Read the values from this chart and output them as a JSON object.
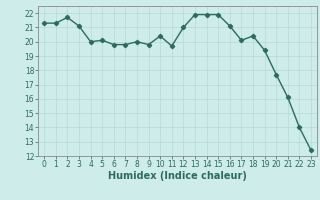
{
  "x": [
    0,
    1,
    2,
    3,
    4,
    5,
    6,
    7,
    8,
    9,
    10,
    11,
    12,
    13,
    14,
    15,
    16,
    17,
    18,
    19,
    20,
    21,
    22,
    23
  ],
  "y": [
    21.3,
    21.3,
    21.7,
    21.1,
    20.0,
    20.1,
    19.8,
    19.8,
    20.0,
    19.8,
    20.4,
    19.7,
    21.0,
    21.9,
    21.9,
    21.9,
    21.1,
    20.1,
    20.4,
    19.4,
    17.7,
    16.1,
    14.0,
    12.4
  ],
  "line_color": "#2d6b5e",
  "marker": "D",
  "marker_size": 2.2,
  "bg_color": "#ceecea",
  "grid_color": "#b8d8d4",
  "xlabel": "Humidex (Indice chaleur)",
  "ylim": [
    12,
    22.5
  ],
  "xlim": [
    -0.5,
    23.5
  ],
  "yticks": [
    12,
    13,
    14,
    15,
    16,
    17,
    18,
    19,
    20,
    21,
    22
  ],
  "xticks": [
    0,
    1,
    2,
    3,
    4,
    5,
    6,
    7,
    8,
    9,
    10,
    11,
    12,
    13,
    14,
    15,
    16,
    17,
    18,
    19,
    20,
    21,
    22,
    23
  ],
  "tick_fontsize": 5.5,
  "xlabel_fontsize": 7,
  "line_width": 1.0
}
